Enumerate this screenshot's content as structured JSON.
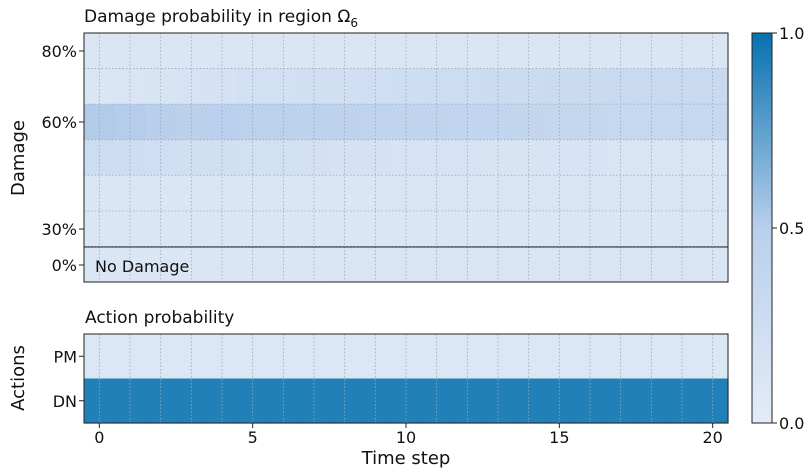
{
  "chart_data": [
    {
      "type": "heatmap",
      "title": "Damage probability in region Ω",
      "title_subscript": "6",
      "ylabel": "Damage",
      "y_tick_labels": [
        "80%",
        "60%",
        "30%",
        "0%"
      ],
      "annotation": "No Damage",
      "x": [
        0,
        1,
        2,
        3,
        4,
        5,
        6,
        7,
        8,
        9,
        10,
        11,
        12,
        13,
        14,
        15,
        16,
        17,
        18,
        19,
        20
      ],
      "rows": [
        {
          "values": [
            0.1,
            0.1,
            0.1,
            0.1,
            0.1,
            0.1,
            0.1,
            0.1,
            0.1,
            0.1,
            0.1,
            0.1,
            0.1,
            0.1,
            0.1,
            0.1,
            0.1,
            0.1,
            0.1,
            0.1,
            0.1
          ]
        },
        {
          "values": [
            0.1,
            0.12,
            0.14,
            0.16,
            0.18,
            0.2,
            0.21,
            0.22,
            0.23,
            0.24,
            0.25,
            0.26,
            0.27,
            0.28,
            0.29,
            0.3,
            0.3,
            0.31,
            0.31,
            0.32,
            0.32
          ]
        },
        {
          "values": [
            0.52,
            0.51,
            0.5,
            0.49,
            0.48,
            0.47,
            0.46,
            0.45,
            0.44,
            0.43,
            0.42,
            0.41,
            0.4,
            0.39,
            0.38,
            0.37,
            0.36,
            0.35,
            0.35,
            0.34,
            0.34
          ]
        },
        {
          "values": [
            0.26,
            0.25,
            0.24,
            0.23,
            0.22,
            0.21,
            0.2,
            0.19,
            0.18,
            0.17,
            0.16,
            0.15,
            0.15,
            0.14,
            0.14,
            0.13,
            0.13,
            0.12,
            0.12,
            0.12,
            0.12
          ]
        },
        {
          "values": [
            0.1,
            0.1,
            0.1,
            0.1,
            0.1,
            0.11,
            0.11,
            0.11,
            0.11,
            0.11,
            0.12,
            0.12,
            0.12,
            0.12,
            0.12,
            0.12,
            0.12,
            0.12,
            0.12,
            0.12,
            0.12
          ]
        },
        {
          "values": [
            0.1,
            0.1,
            0.1,
            0.1,
            0.1,
            0.1,
            0.1,
            0.1,
            0.1,
            0.1,
            0.1,
            0.1,
            0.1,
            0.1,
            0.1,
            0.1,
            0.1,
            0.1,
            0.1,
            0.1,
            0.1
          ]
        },
        {
          "values": [
            0.1,
            0.1,
            0.1,
            0.11,
            0.11,
            0.11,
            0.11,
            0.11,
            0.12,
            0.12,
            0.12,
            0.12,
            0.12,
            0.12,
            0.12,
            0.12,
            0.12,
            0.12,
            0.12,
            0.12,
            0.12
          ]
        }
      ]
    },
    {
      "type": "heatmap",
      "title": "Action probability",
      "ylabel": "Actions",
      "xlabel": "Time step",
      "x_ticks": [
        0,
        5,
        10,
        15,
        20
      ],
      "x": [
        0,
        1,
        2,
        3,
        4,
        5,
        6,
        7,
        8,
        9,
        10,
        11,
        12,
        13,
        14,
        15,
        16,
        17,
        18,
        19,
        20
      ],
      "rows": [
        {
          "label": "PM",
          "values": [
            0.08,
            0.08,
            0.08,
            0.08,
            0.08,
            0.08,
            0.08,
            0.08,
            0.08,
            0.08,
            0.08,
            0.08,
            0.08,
            0.08,
            0.08,
            0.08,
            0.08,
            0.08,
            0.08,
            0.08,
            0.08
          ]
        },
        {
          "label": "DN",
          "values": [
            0.92,
            0.92,
            0.92,
            0.92,
            0.92,
            0.92,
            0.92,
            0.92,
            0.92,
            0.92,
            0.92,
            0.92,
            0.92,
            0.92,
            0.92,
            0.92,
            0.92,
            0.92,
            0.92,
            0.92,
            0.92
          ]
        }
      ]
    }
  ],
  "colorbar": {
    "range": [
      0.0,
      1.0
    ],
    "tick_values": [
      0.0,
      0.5,
      1.0
    ],
    "tick_labels": [
      "0.0",
      "0.5",
      "1.0"
    ],
    "color_low": "#e3ecf8",
    "color_mid": "#b9cfeb",
    "color_high": "#0571b0"
  },
  "grid": true
}
